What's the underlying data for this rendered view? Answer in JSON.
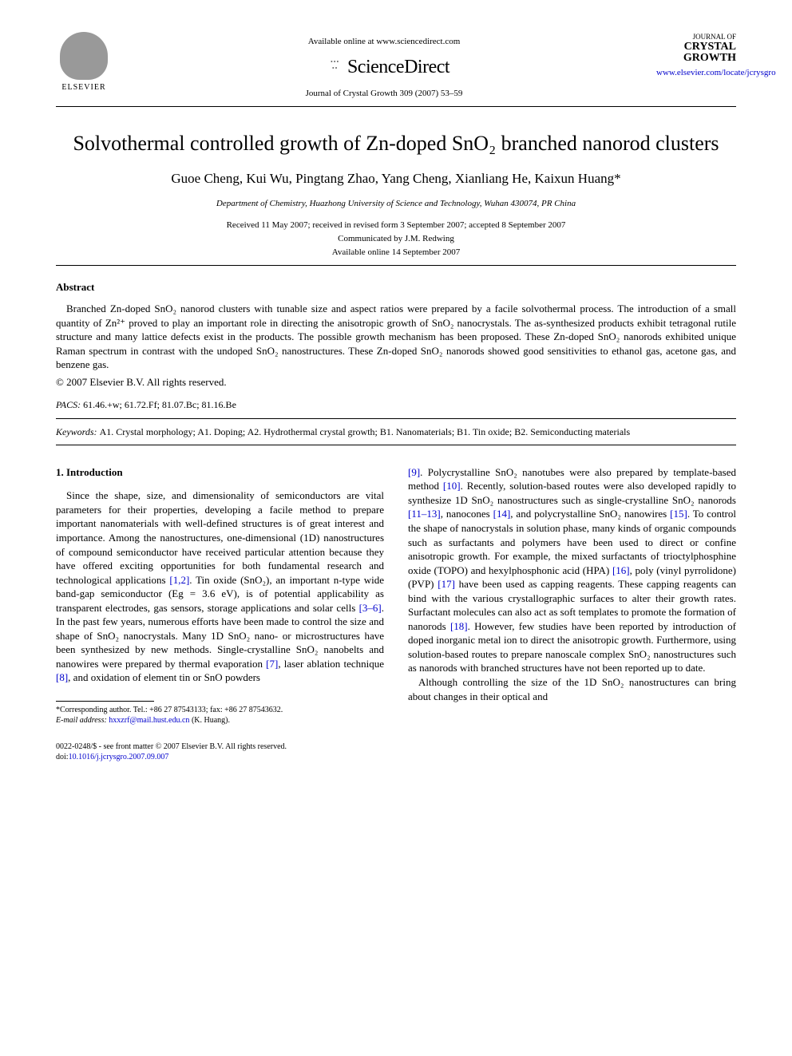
{
  "header": {
    "elsevier": "ELSEVIER",
    "available": "Available online at www.sciencedirect.com",
    "sciencedirect": "ScienceDirect",
    "journal_ref": "Journal of Crystal Growth 309 (2007) 53–59",
    "journal_small": "JOURNAL OF",
    "journal_name": "CRYSTAL GROWTH",
    "journal_link": "www.elsevier.com/locate/jcrysgro"
  },
  "title": "Solvothermal controlled growth of Zn-doped SnO₂ branched nanorod clusters",
  "authors": "Guoe Cheng, Kui Wu, Pingtang Zhao, Yang Cheng, Xianliang He, Kaixun Huang*",
  "affiliation": "Department of Chemistry, Huazhong University of Science and Technology, Wuhan 430074, PR China",
  "dates": {
    "received": "Received 11 May 2007; received in revised form 3 September 2007; accepted 8 September 2007",
    "communicated": "Communicated by J.M. Redwing",
    "online": "Available online 14 September 2007"
  },
  "abstract": {
    "heading": "Abstract",
    "text": "Branched Zn-doped SnO₂ nanorod clusters with tunable size and aspect ratios were prepared by a facile solvothermal process. The introduction of a small quantity of Zn²⁺ proved to play an important role in directing the anisotropic growth of SnO₂ nanocrystals. The as-synthesized products exhibit tetragonal rutile structure and many lattice defects exist in the products. The possible growth mechanism has been proposed. These Zn-doped SnO₂ nanorods exhibited unique Raman spectrum in contrast with the undoped SnO₂ nanostructures. These Zn-doped SnO₂ nanorods showed good sensitivities to ethanol gas, acetone gas, and benzene gas.",
    "copyright": "© 2007 Elsevier B.V. All rights reserved."
  },
  "pacs": {
    "label": "PACS:",
    "value": "61.46.+w; 61.72.Ff; 81.07.Bc; 81.16.Be"
  },
  "keywords": {
    "label": "Keywords:",
    "value": "A1. Crystal morphology; A1. Doping; A2. Hydrothermal crystal growth; B1. Nanomaterials; B1. Tin oxide; B2. Semiconducting materials"
  },
  "section1": {
    "heading": "1. Introduction",
    "col1_p1a": "Since the shape, size, and dimensionality of semiconductors are vital parameters for their properties, developing a facile method to prepare important nanomaterials with well-defined structures is of great interest and importance. Among the nanostructures, one-dimensional (1D) nanostructures of compound semiconductor have received particular attention because they have offered exciting opportunities for both fundamental research and technological applications ",
    "ref1": "[1,2]",
    "col1_p1b": ". Tin oxide (SnO₂), an important n-type wide band-gap semiconductor (Eg = 3.6 eV), is of potential applicability as transparent electrodes, gas sensors, storage applications and solar cells ",
    "ref2": "[3–6]",
    "col1_p1c": ". In the past few years, numerous efforts have been made to control the size and shape of SnO₂ nanocrystals. Many 1D SnO₂ nano- or microstructures have been synthesized by new methods. Single-crystalline SnO₂ nanobelts and nanowires were prepared by thermal evaporation ",
    "ref3": "[7]",
    "col1_p1d": ", laser ablation technique ",
    "ref4": "[8]",
    "col1_p1e": ", and oxidation of element tin or SnO powders ",
    "ref5": "[9]",
    "col2_p1a": ". Polycrystalline SnO₂ nanotubes were also prepared by template-based method ",
    "ref6": "[10]",
    "col2_p1b": ". Recently, solution-based routes were also developed rapidly to synthesize 1D SnO₂ nanostructures such as single-crystalline SnO₂ nanorods ",
    "ref7": "[11–13]",
    "col2_p1c": ", nanocones ",
    "ref8": "[14]",
    "col2_p1d": ", and polycrystalline SnO₂ nanowires ",
    "ref9": "[15]",
    "col2_p1e": ". To control the shape of nanocrystals in solution phase, many kinds of organic compounds such as surfactants and polymers have been used to direct or confine anisotropic growth. For example, the mixed surfactants of trioctylphosphine oxide (TOPO) and hexylphosphonic acid (HPA) ",
    "ref10": "[16]",
    "col2_p1f": ", poly (vinyl pyrrolidone) (PVP) ",
    "ref11": "[17]",
    "col2_p1g": " have been used as capping reagents. These capping reagents can bind with the various crystallographic surfaces to alter their growth rates. Surfactant molecules can also act as soft templates to promote the formation of nanorods ",
    "ref12": "[18]",
    "col2_p1h": ". However, few studies have been reported by introduction of doped inorganic metal ion to direct the anisotropic growth. Furthermore, using solution-based routes to prepare nanoscale complex SnO₂ nanostructures such as nanorods with branched structures have not been reported up to date.",
    "col2_p2": "Although controlling the size of the 1D SnO₂ nanostructures can bring about changes in their optical and"
  },
  "footnote": {
    "corr": "*Corresponding author. Tel.: +86 27 87543133; fax: +86 27 87543632.",
    "email_label": "E-mail address:",
    "email": "hxxzrf@mail.hust.edu.cn",
    "email_suffix": "(K. Huang)."
  },
  "footer": {
    "issn": "0022-0248/$ - see front matter © 2007 Elsevier B.V. All rights reserved.",
    "doi_label": "doi:",
    "doi": "10.1016/j.jcrysgro.2007.09.007"
  }
}
